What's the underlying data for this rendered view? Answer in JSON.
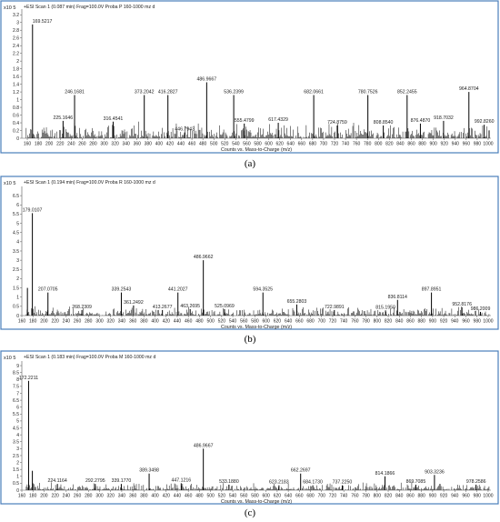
{
  "colors": {
    "frame": "#4a7ebb",
    "bar": "#000000",
    "text": "#1a1a1a"
  },
  "chart_data": [
    {
      "type": "bar",
      "title": "+ESI Scan 1 (0.087 min) Frag=100.0V Proba P 160-1000 mz d",
      "xlabel": "Counts vs. Mass-to-Charge (m/z)",
      "ylabel": "",
      "yexp": "x10 5",
      "caption": "(a)",
      "xlim": [
        150,
        1005
      ],
      "ylim": [
        0,
        3.3
      ],
      "xticks": [
        160,
        180,
        200,
        220,
        240,
        260,
        280,
        300,
        320,
        340,
        360,
        380,
        400,
        420,
        440,
        460,
        480,
        500,
        520,
        540,
        560,
        580,
        600,
        620,
        640,
        660,
        680,
        700,
        720,
        740,
        760,
        780,
        800,
        820,
        840,
        860,
        880,
        900,
        920,
        940,
        960,
        980,
        1000
      ],
      "yticks": [
        0,
        0.2,
        0.4,
        0.6,
        0.8,
        1,
        1.2,
        1.4,
        1.6,
        1.8,
        2,
        2.2,
        2.4,
        2.6,
        2.8,
        3,
        3.2
      ],
      "peaks": [
        {
          "mz": 169.5217,
          "value": 2.95,
          "label": "169.5217"
        },
        {
          "mz": 225.1646,
          "value": 0.45,
          "label": "225.1646"
        },
        {
          "mz": 246.1681,
          "value": 1.12,
          "label": "246.1681"
        },
        {
          "mz": 316.4541,
          "value": 0.43,
          "label": "316.4541"
        },
        {
          "mz": 373.2042,
          "value": 1.12,
          "label": "373.2042"
        },
        {
          "mz": 416.2827,
          "value": 1.12,
          "label": "416.2827"
        },
        {
          "mz": 446.7943,
          "value": 0.15,
          "label": "446.7943"
        },
        {
          "mz": 486.9667,
          "value": 1.45,
          "label": "486.9667"
        },
        {
          "mz": 536.2399,
          "value": 1.12,
          "label": "536.2399"
        },
        {
          "mz": 555.4799,
          "value": 0.38,
          "label": "555.4799"
        },
        {
          "mz": 617.4329,
          "value": 0.4,
          "label": "617.4329"
        },
        {
          "mz": 682.0661,
          "value": 1.12,
          "label": "682.0661"
        },
        {
          "mz": 724.8759,
          "value": 0.33,
          "label": "724.8759"
        },
        {
          "mz": 780.7526,
          "value": 1.12,
          "label": "780.7526"
        },
        {
          "mz": 808.854,
          "value": 0.33,
          "label": "808.8540"
        },
        {
          "mz": 852.2455,
          "value": 1.12,
          "label": "852.2455"
        },
        {
          "mz": 876.487,
          "value": 0.38,
          "label": "876.4870"
        },
        {
          "mz": 918.7032,
          "value": 0.45,
          "label": "918.7032"
        },
        {
          "mz": 964.8704,
          "value": 1.2,
          "label": "964.8704"
        },
        {
          "mz": 992.826,
          "value": 0.35,
          "label": "992.8260"
        }
      ],
      "noise": {
        "max": 0.45
      }
    },
    {
      "type": "bar",
      "title": "+ESI Scan 1 (0.194 min) Frag=100.0V Proba R 160-1000 mz d",
      "xlabel": "Counts vs. Mass-to-Charge (m/z)",
      "ylabel": "",
      "yexp": "x10 5",
      "caption": "(b)",
      "xlim": [
        160,
        1005
      ],
      "ylim": [
        0,
        6.9
      ],
      "xticks": [
        160,
        180,
        200,
        220,
        240,
        260,
        280,
        300,
        320,
        340,
        360,
        380,
        400,
        420,
        440,
        460,
        480,
        500,
        520,
        540,
        560,
        580,
        600,
        620,
        640,
        660,
        680,
        700,
        720,
        740,
        760,
        780,
        800,
        820,
        840,
        860,
        880,
        900,
        920,
        940,
        960,
        980,
        1000
      ],
      "yticks": [
        0,
        0.5,
        1,
        1.5,
        2,
        2.5,
        3,
        3.5,
        4,
        4.5,
        5,
        5.5,
        6,
        6.5
      ],
      "peaks": [
        {
          "mz": 170.1,
          "value": 1.5,
          "label": ""
        },
        {
          "mz": 179.0107,
          "value": 5.55,
          "label": "179.0107"
        },
        {
          "mz": 207.0705,
          "value": 1.25,
          "label": "207.0705"
        },
        {
          "mz": 268.2309,
          "value": 0.3,
          "label": "268.2309"
        },
        {
          "mz": 339.2543,
          "value": 1.25,
          "label": "339.2543"
        },
        {
          "mz": 361.2492,
          "value": 0.55,
          "label": "361.2492"
        },
        {
          "mz": 413.2677,
          "value": 0.3,
          "label": "413.2677"
        },
        {
          "mz": 441.2027,
          "value": 1.25,
          "label": "441.2027"
        },
        {
          "mz": 463.2695,
          "value": 0.35,
          "label": "463.2695"
        },
        {
          "mz": 486.9662,
          "value": 3.0,
          "label": "486.9662"
        },
        {
          "mz": 525.0969,
          "value": 0.35,
          "label": "525.0969"
        },
        {
          "mz": 594.3525,
          "value": 1.25,
          "label": "594.3525"
        },
        {
          "mz": 655.2803,
          "value": 0.6,
          "label": "655.2803"
        },
        {
          "mz": 722.9891,
          "value": 0.3,
          "label": "722.9891"
        },
        {
          "mz": 815.195,
          "value": 0.28,
          "label": "815.1950"
        },
        {
          "mz": 836.8114,
          "value": 0.85,
          "label": "836.8114"
        },
        {
          "mz": 897.8951,
          "value": 1.25,
          "label": "897.8951"
        },
        {
          "mz": 952.8176,
          "value": 0.45,
          "label": "952.8176"
        },
        {
          "mz": 986.2009,
          "value": 0.2,
          "label": "986.2009"
        }
      ],
      "noise": {
        "max": 0.55
      }
    },
    {
      "type": "bar",
      "title": "+ESI Scan 1 (0.183 min) Frag=100.0V Proba M 160-1000 mz d",
      "xlabel": "Counts vs. Mass-to-Charge (m/z)",
      "ylabel": "",
      "yexp": "x10 5",
      "caption": "(c)",
      "xlim": [
        160,
        1005
      ],
      "ylim": [
        0,
        9.2
      ],
      "xticks": [
        160,
        180,
        200,
        220,
        240,
        260,
        280,
        300,
        320,
        340,
        360,
        380,
        400,
        420,
        440,
        460,
        480,
        500,
        520,
        540,
        560,
        580,
        600,
        620,
        640,
        660,
        680,
        700,
        720,
        740,
        760,
        780,
        800,
        820,
        840,
        860,
        880,
        900,
        920,
        940,
        960,
        980,
        1000
      ],
      "yticks": [
        0,
        0.5,
        1,
        1.5,
        2,
        2.5,
        3,
        3.5,
        4,
        4.5,
        5,
        5.5,
        6,
        6.5,
        7,
        7.5,
        8,
        8.5,
        9
      ],
      "peaks": [
        {
          "mz": 172.2211,
          "value": 7.9,
          "label": "172.2211"
        },
        {
          "mz": 179.0,
          "value": 1.4,
          "label": ""
        },
        {
          "mz": 224.1164,
          "value": 0.45,
          "label": "224.1164"
        },
        {
          "mz": 292.2795,
          "value": 0.45,
          "label": "292.2795"
        },
        {
          "mz": 339.177,
          "value": 0.45,
          "label": "339.1770"
        },
        {
          "mz": 389.3498,
          "value": 1.2,
          "label": "389.3498"
        },
        {
          "mz": 447.1216,
          "value": 0.5,
          "label": "447.1216"
        },
        {
          "mz": 486.9667,
          "value": 3.0,
          "label": "486.9667"
        },
        {
          "mz": 533.188,
          "value": 0.4,
          "label": "533.1880"
        },
        {
          "mz": 623.2183,
          "value": 0.35,
          "label": "623.2183"
        },
        {
          "mz": 662.2697,
          "value": 1.2,
          "label": "662.2697"
        },
        {
          "mz": 684.173,
          "value": 0.35,
          "label": "684.1730"
        },
        {
          "mz": 737.225,
          "value": 0.35,
          "label": "737.2250"
        },
        {
          "mz": 814.1866,
          "value": 1.0,
          "label": "814.1866"
        },
        {
          "mz": 869.7085,
          "value": 0.4,
          "label": "869.7085"
        },
        {
          "mz": 903.3236,
          "value": 1.1,
          "label": "903.3236"
        },
        {
          "mz": 978.2586,
          "value": 0.4,
          "label": "978.2586"
        }
      ],
      "noise": {
        "max": 0.6
      }
    }
  ]
}
